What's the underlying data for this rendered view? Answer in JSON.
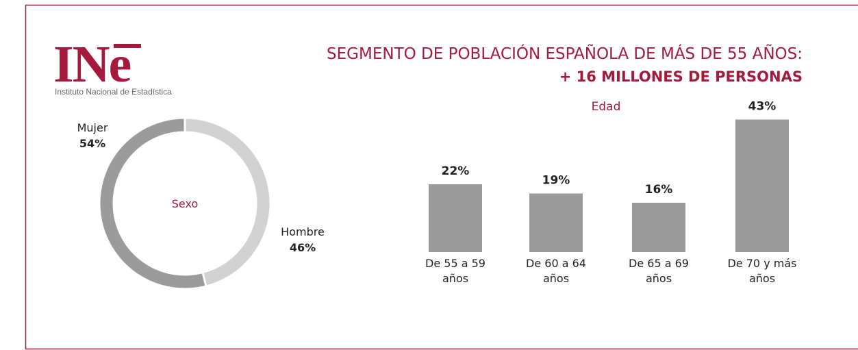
{
  "logo": {
    "text": "INe",
    "caption": "Instituto Nacional de Estadística"
  },
  "title": {
    "line1": "SEGMENTO DE POBLACIÓN ESPAÑOLA DE MÁS DE 55 AÑOS:",
    "line2": "+ 16 MILLONES DE PERSONAS"
  },
  "chart_data": [
    {
      "type": "pie",
      "donut": true,
      "title": "Sexo",
      "categories": [
        "Mujer",
        "Hombre"
      ],
      "values": [
        54,
        46
      ],
      "value_labels": [
        "54%",
        "46%"
      ],
      "colors": [
        "#9b9b9b",
        "#d2d2d2"
      ]
    },
    {
      "type": "bar",
      "title": "Edad",
      "categories": [
        "De 55 a 59 años",
        "De 60 a 64 años",
        "De 65 a 69 años",
        "De 70 y más años"
      ],
      "values": [
        22,
        19,
        16,
        43
      ],
      "value_labels": [
        "22%",
        "19%",
        "16%",
        "43%"
      ],
      "color": "#9b9b9b"
    }
  ]
}
